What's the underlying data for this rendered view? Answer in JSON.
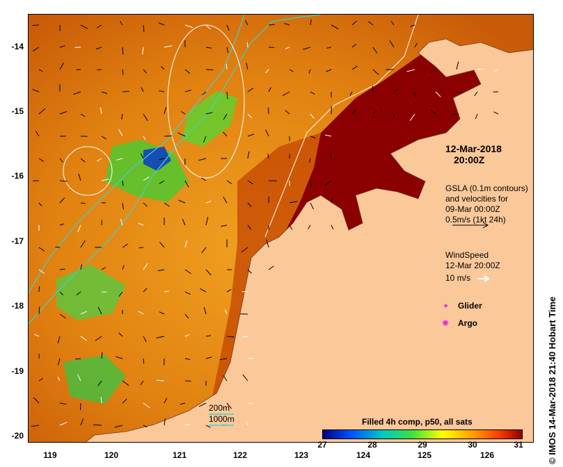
{
  "map": {
    "y_labels": [
      "-14",
      "-15",
      "-16",
      "-17",
      "-18",
      "-19",
      "-20"
    ],
    "x_labels": [
      "119",
      "120",
      "121",
      "122",
      "123",
      "124",
      "125",
      "126"
    ],
    "colors": {
      "land": "#fbc89a",
      "coast_line": "#6b3a1f",
      "contour_cyan": "#40d0d0",
      "contour_white": "#ffffff",
      "sst_hot": "#8b0000"
    }
  },
  "annotations": {
    "date": "12-Mar-2018",
    "time": "20:00Z",
    "gsla_line1": "GSLA (0.1m contours)",
    "gsla_line2": "and velocities for",
    "gsla_line3": "09-Mar 00:00Z",
    "gsla_line4": "0.5m/s (1kt 24h)",
    "wind_line1": "WindSpeed",
    "wind_line2": "12-Mar 20:00Z",
    "wind_scale": "10 m/s",
    "glider": "Glider",
    "argo": "Argo",
    "depth_200": "200m",
    "depth_1000": "1000m"
  },
  "colorbar": {
    "title": "Filled 4h comp, p50, all sats",
    "ticks": [
      "27",
      "28",
      "29",
      "30",
      "31"
    ],
    "range": [
      27,
      31
    ],
    "stops": [
      "#00007f",
      "#0050ff",
      "#00c8c8",
      "#40e040",
      "#ffff00",
      "#ffa000",
      "#ff4000",
      "#8b0000"
    ]
  },
  "credit": "IMOS 14-Mar-2018 21:40 Hobart Time",
  "credit_symbol": "©"
}
